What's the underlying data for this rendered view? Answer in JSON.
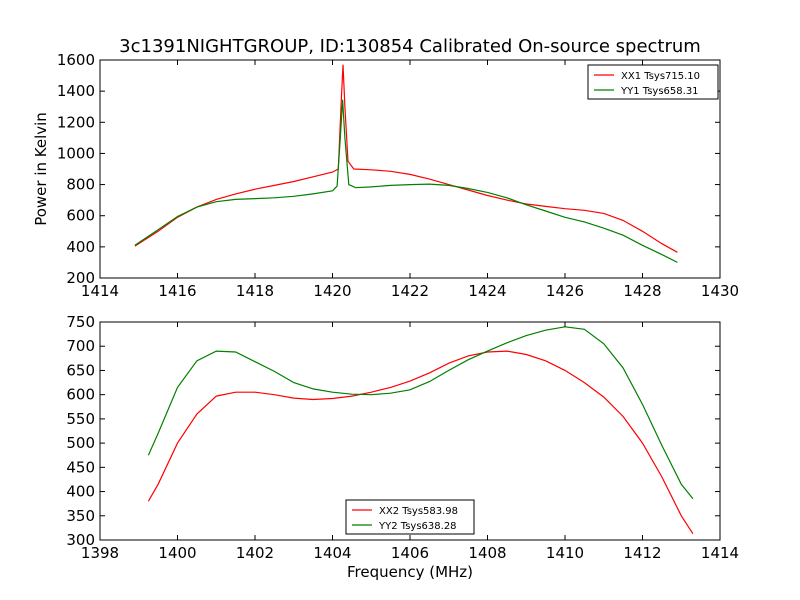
{
  "title": "3c1391NIGHTGROUP, ID:130854 Calibrated On-source spectrum",
  "chart_data": [
    {
      "type": "line",
      "xlabel": "",
      "ylabel": "Power in Kelvin",
      "xlim": [
        1414,
        1430
      ],
      "ylim": [
        200,
        1600
      ],
      "xticks": [
        "1414",
        "1416",
        "1418",
        "1420",
        "1422",
        "1424",
        "1426",
        "1428",
        "1430"
      ],
      "yticks": [
        "200",
        "400",
        "600",
        "800",
        "1000",
        "1200",
        "1400",
        "1600"
      ],
      "legend_position": "top-right",
      "series": [
        {
          "name": "XX1 Tsys715.10",
          "color": "#ff0000",
          "points": [
            [
              1414.9,
              405
            ],
            [
              1415.5,
              500
            ],
            [
              1416,
              590
            ],
            [
              1416.5,
              655
            ],
            [
              1417,
              705
            ],
            [
              1417.5,
              740
            ],
            [
              1418,
              770
            ],
            [
              1418.5,
              795
            ],
            [
              1419,
              820
            ],
            [
              1419.5,
              850
            ],
            [
              1420,
              880
            ],
            [
              1420.15,
              900
            ],
            [
              1420.22,
              1300
            ],
            [
              1420.27,
              1570
            ],
            [
              1420.32,
              1300
            ],
            [
              1420.4,
              950
            ],
            [
              1420.55,
              900
            ],
            [
              1421,
              895
            ],
            [
              1421.5,
              885
            ],
            [
              1422,
              865
            ],
            [
              1422.5,
              835
            ],
            [
              1423,
              800
            ],
            [
              1423.5,
              765
            ],
            [
              1424,
              730
            ],
            [
              1424.5,
              700
            ],
            [
              1425,
              675
            ],
            [
              1425.5,
              660
            ],
            [
              1426,
              645
            ],
            [
              1426.5,
              635
            ],
            [
              1427,
              615
            ],
            [
              1427.5,
              570
            ],
            [
              1428,
              500
            ],
            [
              1428.5,
              420
            ],
            [
              1428.9,
              365
            ]
          ]
        },
        {
          "name": "YY1 Tsys658.31",
          "color": "#008000",
          "points": [
            [
              1414.9,
              410
            ],
            [
              1415.5,
              510
            ],
            [
              1416,
              595
            ],
            [
              1416.5,
              655
            ],
            [
              1417,
              690
            ],
            [
              1417.5,
              705
            ],
            [
              1418,
              710
            ],
            [
              1418.5,
              715
            ],
            [
              1419,
              725
            ],
            [
              1419.5,
              740
            ],
            [
              1420,
              760
            ],
            [
              1420.12,
              790
            ],
            [
              1420.2,
              1100
            ],
            [
              1420.26,
              1345
            ],
            [
              1420.32,
              1100
            ],
            [
              1420.42,
              800
            ],
            [
              1420.6,
              780
            ],
            [
              1421,
              785
            ],
            [
              1421.5,
              795
            ],
            [
              1422,
              800
            ],
            [
              1422.5,
              803
            ],
            [
              1423,
              795
            ],
            [
              1423.5,
              775
            ],
            [
              1424,
              750
            ],
            [
              1424.5,
              715
            ],
            [
              1425,
              670
            ],
            [
              1425.5,
              630
            ],
            [
              1426,
              590
            ],
            [
              1426.5,
              560
            ],
            [
              1427,
              520
            ],
            [
              1427.5,
              475
            ],
            [
              1428,
              410
            ],
            [
              1428.5,
              350
            ],
            [
              1428.9,
              300
            ]
          ]
        }
      ]
    },
    {
      "type": "line",
      "xlabel": "Frequency (MHz)",
      "ylabel": "",
      "xlim": [
        1398,
        1414
      ],
      "ylim": [
        300,
        750
      ],
      "xticks": [
        "1398",
        "1400",
        "1402",
        "1404",
        "1406",
        "1408",
        "1410",
        "1412",
        "1414"
      ],
      "yticks": [
        "300",
        "350",
        "400",
        "450",
        "500",
        "550",
        "600",
        "650",
        "700",
        "750"
      ],
      "legend_position": "bottom-center",
      "series": [
        {
          "name": "XX2 Tsys583.98",
          "color": "#ff0000",
          "points": [
            [
              1399.25,
              380
            ],
            [
              1399.5,
              415
            ],
            [
              1400,
              500
            ],
            [
              1400.5,
              560
            ],
            [
              1401,
              597
            ],
            [
              1401.5,
              605
            ],
            [
              1402,
              605
            ],
            [
              1402.5,
              600
            ],
            [
              1403,
              593
            ],
            [
              1403.5,
              590
            ],
            [
              1404,
              592
            ],
            [
              1404.5,
              597
            ],
            [
              1405,
              605
            ],
            [
              1405.5,
              615
            ],
            [
              1406,
              628
            ],
            [
              1406.5,
              645
            ],
            [
              1407,
              665
            ],
            [
              1407.5,
              680
            ],
            [
              1408,
              688
            ],
            [
              1408.5,
              690
            ],
            [
              1409,
              683
            ],
            [
              1409.5,
              670
            ],
            [
              1410,
              650
            ],
            [
              1410.5,
              625
            ],
            [
              1411,
              595
            ],
            [
              1411.5,
              555
            ],
            [
              1412,
              500
            ],
            [
              1412.5,
              430
            ],
            [
              1413,
              350
            ],
            [
              1413.3,
              313
            ]
          ]
        },
        {
          "name": "YY2 Tsys638.28",
          "color": "#008000",
          "points": [
            [
              1399.25,
              475
            ],
            [
              1399.5,
              520
            ],
            [
              1400,
              615
            ],
            [
              1400.5,
              670
            ],
            [
              1401,
              690
            ],
            [
              1401.5,
              688
            ],
            [
              1402,
              668
            ],
            [
              1402.5,
              648
            ],
            [
              1403,
              625
            ],
            [
              1403.5,
              612
            ],
            [
              1404,
              605
            ],
            [
              1404.5,
              601
            ],
            [
              1405,
              600
            ],
            [
              1405.5,
              603
            ],
            [
              1406,
              610
            ],
            [
              1406.5,
              627
            ],
            [
              1407,
              650
            ],
            [
              1407.5,
              672
            ],
            [
              1408,
              690
            ],
            [
              1408.5,
              707
            ],
            [
              1409,
              722
            ],
            [
              1409.5,
              733
            ],
            [
              1410,
              740
            ],
            [
              1410.5,
              735
            ],
            [
              1411,
              705
            ],
            [
              1411.5,
              655
            ],
            [
              1412,
              580
            ],
            [
              1412.5,
              495
            ],
            [
              1413,
              415
            ],
            [
              1413.3,
              385
            ]
          ]
        }
      ]
    }
  ]
}
